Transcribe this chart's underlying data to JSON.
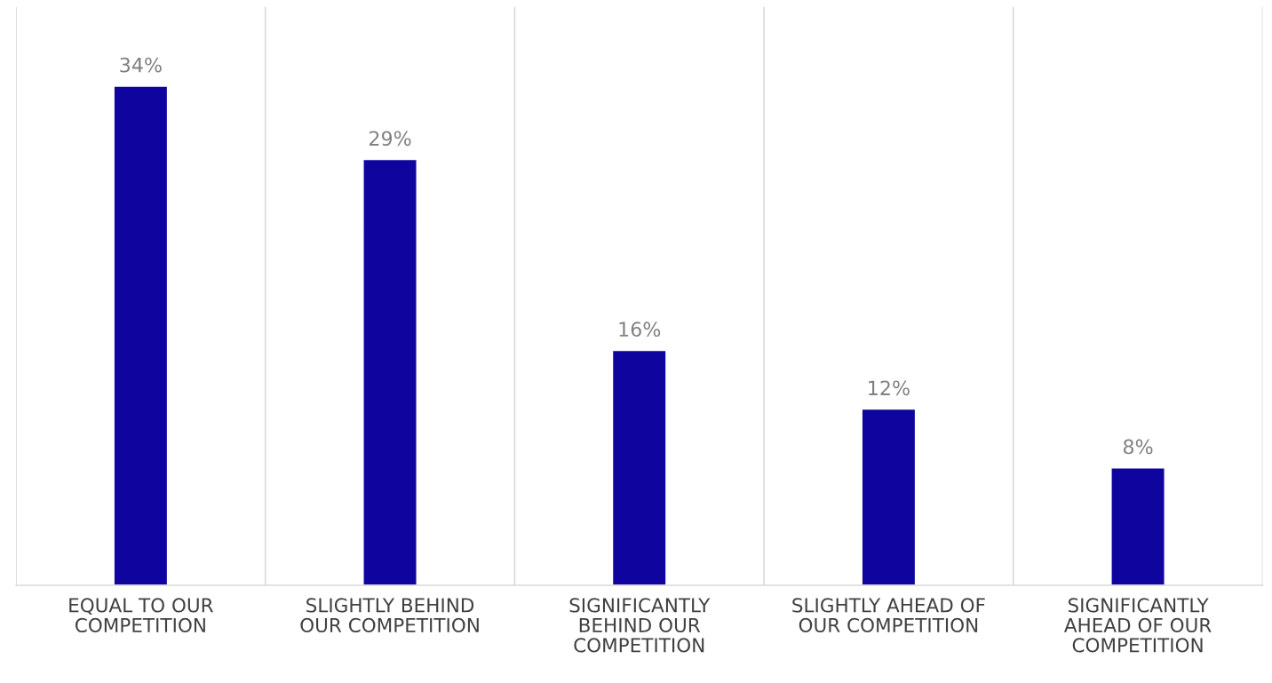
{
  "chart_data": {
    "type": "bar",
    "categories": [
      "EQUAL TO OUR\nCOMPETITION",
      "SLIGHTLY BEHIND\nOUR COMPETITION",
      "SIGNIFICANTLY\nBEHIND OUR\nCOMPETITION",
      "SLIGHTLY AHEAD OF\nOUR COMPETITION",
      "SIGNIFICANTLY\nAHEAD OF OUR\nCOMPETITION"
    ],
    "values": [
      34,
      29,
      16,
      12,
      8
    ],
    "value_labels": [
      "34%",
      "29%",
      "16%",
      "12%",
      "8%"
    ],
    "color": "#0f059e",
    "ylim": [
      0,
      39.4
    ],
    "tick_labels": "x",
    "grid": "x",
    "legend": false
  }
}
